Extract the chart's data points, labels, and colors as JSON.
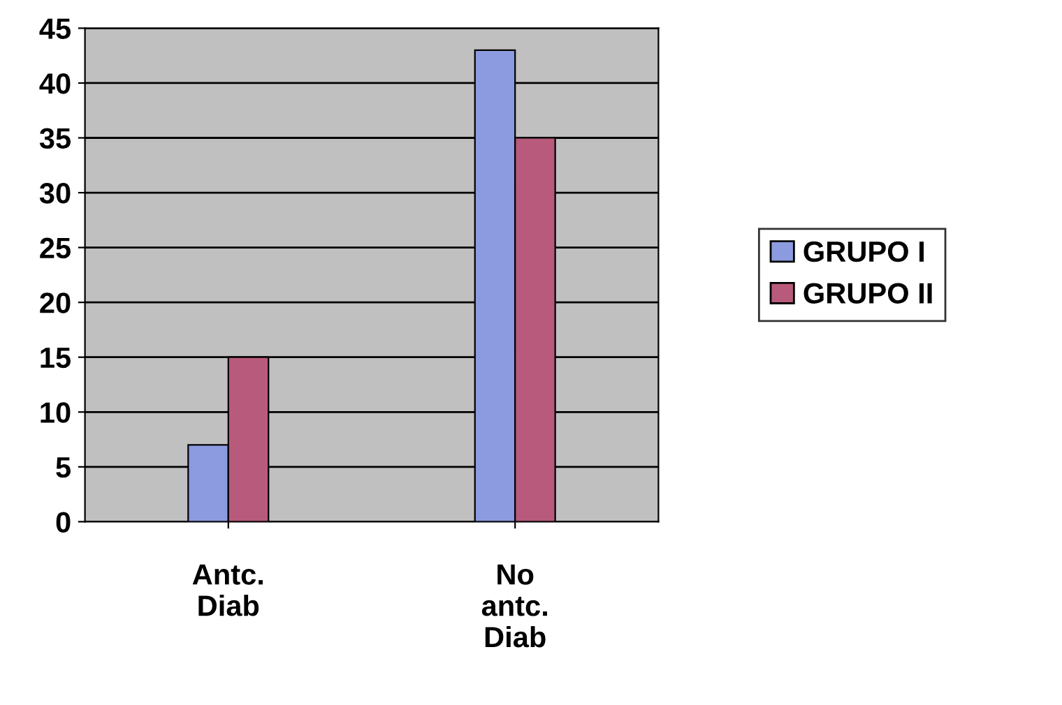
{
  "chart_data": {
    "type": "bar",
    "categories": [
      "Antc.\nDiab",
      "No\nantc.\nDiab"
    ],
    "series": [
      {
        "name": "GRUPO I",
        "color": "#8c9be0",
        "values": [
          7,
          43
        ]
      },
      {
        "name": "GRUPO II",
        "color": "#b85a7c",
        "values": [
          15,
          35
        ]
      }
    ],
    "ylim": [
      0,
      45
    ],
    "yticks": [
      0,
      5,
      10,
      15,
      20,
      25,
      30,
      35,
      40,
      45
    ],
    "grid": "y",
    "legend": "right"
  }
}
